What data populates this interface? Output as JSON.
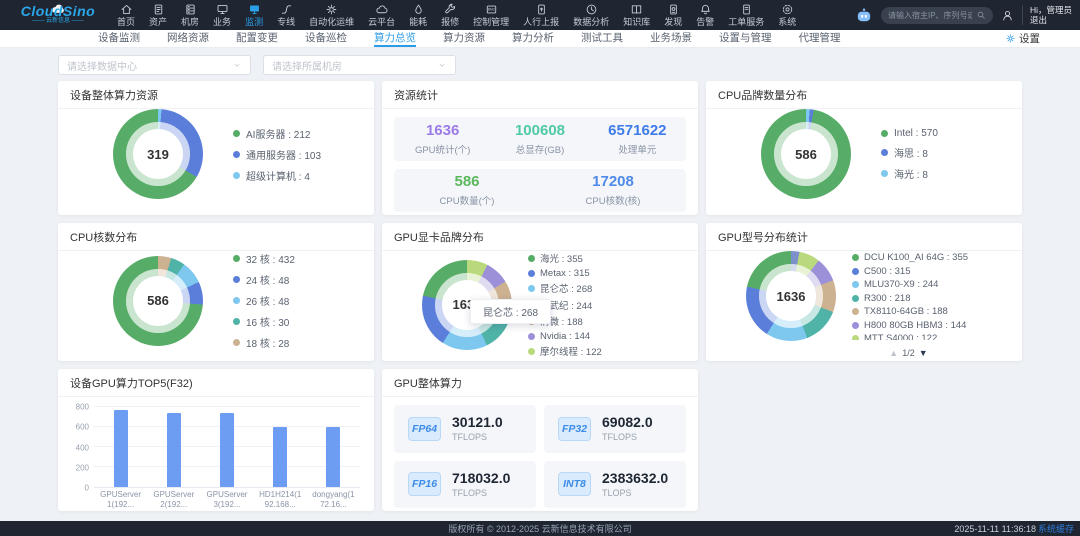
{
  "colors": {
    "accent": "#2b9fe8",
    "topbar_bg": "#1f2531"
  },
  "topbar": {
    "logo": {
      "title": "CloudSino",
      "subtitle": "云新信息"
    },
    "nav": [
      {
        "label": "首页",
        "icon": "home"
      },
      {
        "label": "资产",
        "icon": "asset"
      },
      {
        "label": "机房",
        "icon": "datacenter"
      },
      {
        "label": "业务",
        "icon": "business"
      },
      {
        "label": "监测",
        "icon": "monitor",
        "active": true
      },
      {
        "label": "专线",
        "icon": "line"
      },
      {
        "label": "自动化运维",
        "icon": "automation"
      },
      {
        "label": "云平台",
        "icon": "cloud"
      },
      {
        "label": "能耗",
        "icon": "energy"
      },
      {
        "label": "报修",
        "icon": "repair"
      },
      {
        "label": "控制管理",
        "icon": "bmc"
      },
      {
        "label": "人行上报",
        "icon": "report"
      },
      {
        "label": "数据分析",
        "icon": "analysis"
      },
      {
        "label": "知识库",
        "icon": "knowledge"
      },
      {
        "label": "发现",
        "icon": "discover"
      },
      {
        "label": "告警",
        "icon": "alarm"
      },
      {
        "label": "工单服务",
        "icon": "ticket"
      },
      {
        "label": "系统",
        "icon": "system"
      }
    ],
    "search_placeholder": "请输入宿主IP、序列号或MA",
    "user": {
      "greeting": "Hi，管理员",
      "logout": "退出"
    }
  },
  "subnav": {
    "tabs": [
      {
        "label": "设备监测"
      },
      {
        "label": "网络资源"
      },
      {
        "label": "配置变更"
      },
      {
        "label": "设备巡检"
      },
      {
        "label": "算力总览",
        "active": true
      },
      {
        "label": "算力资源"
      },
      {
        "label": "算力分析"
      },
      {
        "label": "测试工具"
      },
      {
        "label": "业务场景"
      },
      {
        "label": "设置与管理"
      },
      {
        "label": "代理管理"
      }
    ],
    "settings_label": "设置"
  },
  "filters": {
    "datacenter_placeholder": "请选择数据中心",
    "room_placeholder": "请选择所属机房"
  },
  "chart_data": [
    {
      "type": "pie",
      "title": "设备整体算力资源",
      "center_value": "319",
      "legend": [
        {
          "label": "AI服务器",
          "value": 212,
          "color": "#57ad68"
        },
        {
          "label": "通用服务器",
          "value": 103,
          "color": "#5b7eda"
        },
        {
          "label": "超级计算机",
          "value": 4,
          "color": "#7ec8f0"
        }
      ]
    },
    {
      "type": "table",
      "title": "资源统计",
      "groups": [
        [
          {
            "value": "1636",
            "label": "GPU统计(个)",
            "color": "#9b7be8"
          },
          {
            "value": "100608",
            "label": "总显存(GB)",
            "color": "#4fc9a6"
          },
          {
            "value": "6571622",
            "label": "处理单元",
            "color": "#3e7be8"
          }
        ],
        [
          {
            "value": "586",
            "label": "CPU数量(个)",
            "color": "#5cb85c"
          },
          {
            "value": "17208",
            "label": "CPU核数(核)",
            "color": "#4e8ae8"
          }
        ]
      ]
    },
    {
      "type": "pie",
      "title": "CPU品牌数量分布",
      "center_value": "586",
      "legend": [
        {
          "label": "Intel",
          "value": 570,
          "color": "#57ad68"
        },
        {
          "label": "海思",
          "value": 8,
          "color": "#5b7eda"
        },
        {
          "label": "海光",
          "value": 8,
          "color": "#7ec8f0"
        }
      ]
    },
    {
      "type": "pie",
      "title": "CPU核数分布",
      "center_value": "586",
      "legend": [
        {
          "label": "32 核",
          "value": 432,
          "color": "#57ad68"
        },
        {
          "label": "24 核",
          "value": 48,
          "color": "#5b7eda"
        },
        {
          "label": "26 核",
          "value": 48,
          "color": "#7ec8f0"
        },
        {
          "label": "16 核",
          "value": 30,
          "color": "#4fb3a8"
        },
        {
          "label": "18 核",
          "value": 28,
          "color": "#cdb292"
        }
      ]
    },
    {
      "type": "pie",
      "title": "GPU显卡品牌分布",
      "center_value": "1636",
      "legend": [
        {
          "label": "海光",
          "value": 355,
          "color": "#57ad68"
        },
        {
          "label": "Metax",
          "value": 315,
          "color": "#5b7eda"
        },
        {
          "label": "昆仑芯",
          "value": 268,
          "color": "#7ec8f0"
        },
        {
          "label": "寒武纪",
          "value": 244,
          "color": "#4fb3a8"
        },
        {
          "label": "清微",
          "value": 188,
          "color": "#cdb292"
        },
        {
          "label": "Nvidia",
          "value": 144,
          "color": "#9c90d8"
        },
        {
          "label": "摩尔线程",
          "value": 122,
          "color": "#b9d97c"
        }
      ],
      "tooltip": {
        "label": "昆仑芯",
        "value": 268
      }
    },
    {
      "type": "pie",
      "title": "GPU型号分布统计",
      "center_value": "1636",
      "total": 1636,
      "hidden_value": 50,
      "hidden_color": "#7c91c9",
      "legend": [
        {
          "label": "DCU K100_AI 64G",
          "value": 355,
          "color": "#57ad68"
        },
        {
          "label": "C500",
          "value": 315,
          "color": "#5b7eda"
        },
        {
          "label": "MLU370-X9",
          "value": 244,
          "color": "#7ec8f0"
        },
        {
          "label": "R300",
          "value": 218,
          "color": "#4fb3a8"
        },
        {
          "label": "TX8110-64GB",
          "value": 188,
          "color": "#cdb292"
        },
        {
          "label": "H800 80GB HBM3",
          "value": 144,
          "color": "#9c90d8"
        },
        {
          "label": "MTT S4000",
          "value": 122,
          "color": "#b9d97c"
        }
      ],
      "pagination": "1/2"
    },
    {
      "type": "bar",
      "title": "设备GPU算力TOP5(F32)",
      "categories": [
        "GPUServer1(192...",
        "GPUServer2(192...",
        "GPUServer3(192...",
        "HD1H214(192.168...",
        "dongyang(172.16..."
      ],
      "values": [
        770,
        745,
        745,
        600,
        600
      ],
      "ylim": [
        0,
        800
      ],
      "yticks": [
        0,
        200,
        400,
        600,
        800
      ],
      "bar_color": "#6d9df2"
    },
    {
      "type": "table",
      "title": "GPU整体算力",
      "tiles": [
        {
          "badge": "FP64",
          "value": "30121.0",
          "unit": "TFLOPS"
        },
        {
          "badge": "FP32",
          "value": "69082.0",
          "unit": "TFLOPS"
        },
        {
          "badge": "FP16",
          "value": "718032.0",
          "unit": "TFLOPS"
        },
        {
          "badge": "INT8",
          "value": "2383632.0",
          "unit": "TLOPS"
        }
      ]
    }
  ],
  "footer": {
    "copyright": "版权所有 © 2012-2025 云新信息技术有限公司",
    "timestamp": "2025-11-11 11:36:18",
    "cache_label": "系统缓存"
  }
}
